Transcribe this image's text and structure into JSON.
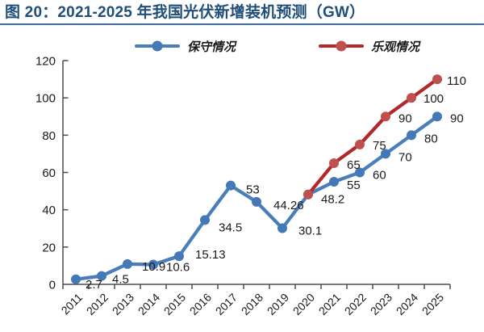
{
  "header": {
    "title": "图 20：2021-2025 年我国光伏新增装机预测（GW）"
  },
  "colors": {
    "title_text": "#1F4E79",
    "title_rule": "#3A6BB5",
    "axis": "#4d4d4d",
    "label_text": "#1a1a1a",
    "background": "#ffffff"
  },
  "chart_data": {
    "type": "line",
    "title": "2021-2025 年我国光伏新增装机预测（GW）",
    "figure_number": "图 20",
    "xlabel": "",
    "ylabel": "",
    "x": [
      "2011",
      "2012",
      "2013",
      "2014",
      "2015",
      "2016",
      "2017",
      "2018",
      "2019",
      "2020",
      "2021",
      "2022",
      "2023",
      "2024",
      "2025"
    ],
    "ylim": [
      0,
      120
    ],
    "yticks": [
      0,
      20,
      40,
      60,
      80,
      100,
      120
    ],
    "grid": false,
    "legend_position": "top",
    "series": [
      {
        "name": "保守情况",
        "color": "#4A7EBB",
        "marker_color": "#4478B6",
        "values": [
          2.7,
          4.5,
          10.9,
          10.6,
          15.13,
          34.5,
          53,
          44.26,
          30.1,
          48.2,
          55,
          60,
          70,
          80,
          90
        ],
        "labels": [
          "2.7",
          "4.5",
          "10.9",
          "10.6",
          "15.13",
          "34.5",
          "53",
          "44.26",
          "30.1",
          "48.2",
          "55",
          "60",
          "70",
          "80",
          "90"
        ]
      },
      {
        "name": "乐观情况",
        "color": "#B2292C",
        "marker_color": "#C0504D",
        "values": [
          null,
          null,
          null,
          null,
          null,
          null,
          null,
          null,
          null,
          48.2,
          65,
          75,
          90,
          100,
          110
        ],
        "labels": [
          null,
          null,
          null,
          null,
          null,
          null,
          null,
          null,
          null,
          null,
          "65",
          "75",
          "90",
          "100",
          "110"
        ]
      }
    ]
  }
}
